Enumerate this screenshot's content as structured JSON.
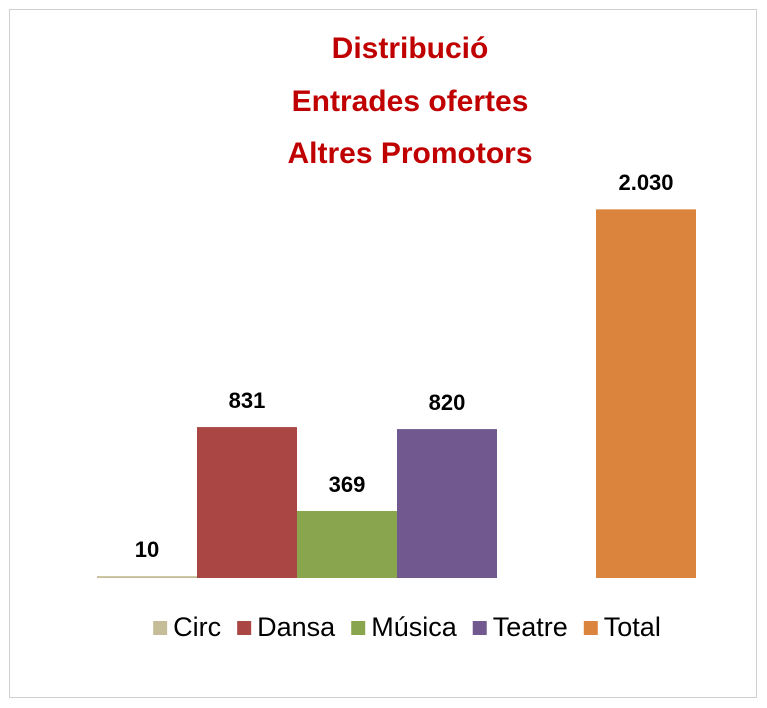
{
  "chart_data": {
    "type": "bar",
    "title": [
      "Distribució",
      "Entrades ofertes",
      "Altres Promotors"
    ],
    "series": [
      {
        "name": "Circ",
        "color": "#c4bd97",
        "values": [
          10
        ],
        "value_labels": [
          "10"
        ]
      },
      {
        "name": "Dansa",
        "color": "#aa4643",
        "values": [
          831
        ],
        "value_labels": [
          "831"
        ]
      },
      {
        "name": "Música",
        "color": "#89a54e",
        "values": [
          369
        ],
        "value_labels": [
          "369"
        ]
      },
      {
        "name": "Teatre",
        "color": "#71588f",
        "values": [
          820
        ],
        "value_labels": [
          "820"
        ]
      },
      {
        "name": "Total",
        "color": "#db843d",
        "values": [
          2030
        ],
        "value_labels": [
          "2.030"
        ]
      }
    ],
    "ylim": [
      0,
      2500
    ],
    "legend": "bottom"
  }
}
